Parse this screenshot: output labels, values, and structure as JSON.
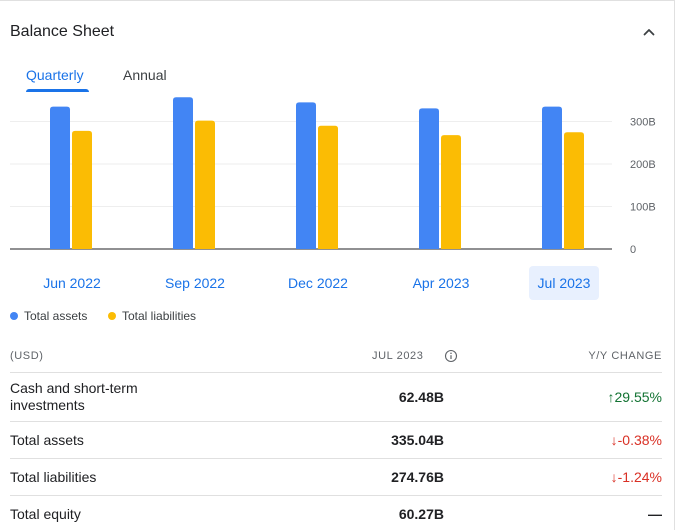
{
  "header": {
    "title": "Balance Sheet"
  },
  "tabs": [
    {
      "label": "Quarterly",
      "active": true
    },
    {
      "label": "Annual",
      "active": false
    }
  ],
  "colors": {
    "assets": "#4285f4",
    "liabilities": "#fbbc04",
    "accent": "#1a73e8",
    "positive": "#137333",
    "negative": "#d93025"
  },
  "chart_data": {
    "type": "bar",
    "categories": [
      "Jun 2022",
      "Sep 2022",
      "Dec 2022",
      "Apr 2023",
      "Jul 2023"
    ],
    "selected_category": "Jul 2023",
    "series": [
      {
        "name": "Total assets",
        "values": [
          335,
          357,
          345,
          331,
          335.04
        ]
      },
      {
        "name": "Total liabilities",
        "values": [
          278,
          302,
          290,
          268,
          274.76
        ]
      }
    ],
    "ylim": [
      0,
      360
    ],
    "y_ticks": [
      {
        "value": 0,
        "label": "0"
      },
      {
        "value": 100,
        "label": "100B"
      },
      {
        "value": 200,
        "label": "200B"
      },
      {
        "value": 300,
        "label": "300B"
      }
    ],
    "grid": true,
    "legend": "bottom-left"
  },
  "table": {
    "headers": {
      "label": "(USD)",
      "period": "JUL 2023",
      "change": "Y/Y CHANGE"
    },
    "rows": [
      {
        "label": "Cash and short-term investments",
        "value": "62.48B",
        "change": "29.55%",
        "direction": "up"
      },
      {
        "label": "Total assets",
        "value": "335.04B",
        "change": "-0.38%",
        "direction": "down"
      },
      {
        "label": "Total liabilities",
        "value": "274.76B",
        "change": "-1.24%",
        "direction": "down"
      },
      {
        "label": "Total equity",
        "value": "60.27B",
        "change": "—",
        "direction": "neutral"
      }
    ]
  }
}
